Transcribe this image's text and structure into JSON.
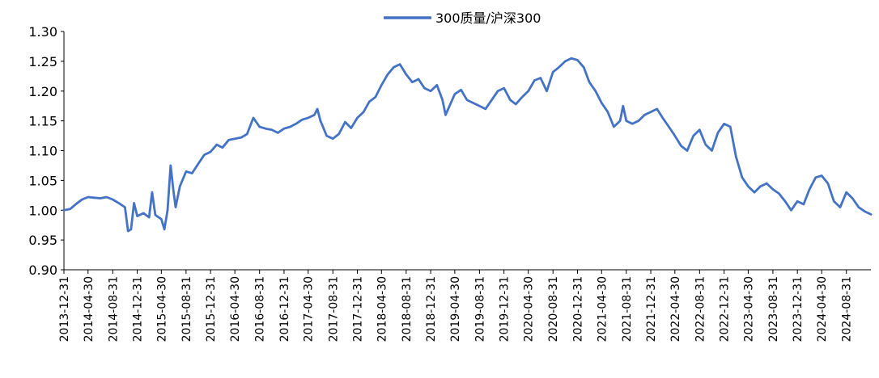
{
  "chart_data": {
    "type": "line",
    "title": "",
    "xlabel": "",
    "ylabel": "",
    "ylim": [
      0.9,
      1.3
    ],
    "yticks": [
      "0.90",
      "0.95",
      "1.00",
      "1.05",
      "1.10",
      "1.15",
      "1.20",
      "1.25",
      "1.30"
    ],
    "xlim": [
      "2013-12-31",
      "2024-12-31"
    ],
    "xtick_labels": [
      "2013-12-31",
      "2014-04-30",
      "2014-08-31",
      "2014-12-31",
      "2015-04-30",
      "2015-08-31",
      "2015-12-31",
      "2016-04-30",
      "2016-08-31",
      "2016-12-31",
      "2017-04-30",
      "2017-08-31",
      "2017-12-31",
      "2018-04-30",
      "2018-08-31",
      "2018-12-31",
      "2019-04-30",
      "2019-08-31",
      "2019-12-31",
      "2020-04-30",
      "2020-08-31",
      "2020-12-31",
      "2021-04-30",
      "2021-08-31",
      "2021-12-31",
      "2022-04-30",
      "2022-08-31",
      "2022-12-31",
      "2023-04-30",
      "2023-08-31",
      "2023-12-31",
      "2024-04-30",
      "2024-08-31"
    ],
    "grid": false,
    "legend": "top-center",
    "series": [
      {
        "name": "300质量/沪深300",
        "color": "#4472c4",
        "points": [
          [
            "2013-12-31",
            1.0
          ],
          [
            "2014-01-31",
            1.002
          ],
          [
            "2014-02-28",
            1.01
          ],
          [
            "2014-03-31",
            1.018
          ],
          [
            "2014-04-30",
            1.022
          ],
          [
            "2014-05-31",
            1.021
          ],
          [
            "2014-06-30",
            1.02
          ],
          [
            "2014-07-31",
            1.022
          ],
          [
            "2014-08-31",
            1.018
          ],
          [
            "2014-09-30",
            1.012
          ],
          [
            "2014-10-31",
            1.005
          ],
          [
            "2014-11-15",
            0.965
          ],
          [
            "2014-11-30",
            0.968
          ],
          [
            "2014-12-15",
            1.012
          ],
          [
            "2014-12-31",
            0.99
          ],
          [
            "2015-01-31",
            0.995
          ],
          [
            "2015-02-28",
            0.988
          ],
          [
            "2015-03-15",
            1.03
          ],
          [
            "2015-03-31",
            0.992
          ],
          [
            "2015-04-30",
            0.985
          ],
          [
            "2015-05-15",
            0.968
          ],
          [
            "2015-05-31",
            1.0
          ],
          [
            "2015-06-15",
            1.075
          ],
          [
            "2015-06-30",
            1.03
          ],
          [
            "2015-07-10",
            1.005
          ],
          [
            "2015-07-31",
            1.04
          ],
          [
            "2015-08-31",
            1.065
          ],
          [
            "2015-09-30",
            1.062
          ],
          [
            "2015-10-31",
            1.078
          ],
          [
            "2015-11-30",
            1.093
          ],
          [
            "2015-12-31",
            1.098
          ],
          [
            "2016-01-31",
            1.11
          ],
          [
            "2016-02-28",
            1.105
          ],
          [
            "2016-03-31",
            1.118
          ],
          [
            "2016-04-30",
            1.12
          ],
          [
            "2016-05-31",
            1.122
          ],
          [
            "2016-06-30",
            1.128
          ],
          [
            "2016-07-31",
            1.155
          ],
          [
            "2016-08-31",
            1.14
          ],
          [
            "2016-09-30",
            1.137
          ],
          [
            "2016-10-31",
            1.135
          ],
          [
            "2016-11-30",
            1.13
          ],
          [
            "2016-12-31",
            1.137
          ],
          [
            "2017-01-31",
            1.14
          ],
          [
            "2017-02-28",
            1.145
          ],
          [
            "2017-03-31",
            1.152
          ],
          [
            "2017-04-30",
            1.155
          ],
          [
            "2017-05-31",
            1.16
          ],
          [
            "2017-06-15",
            1.17
          ],
          [
            "2017-06-30",
            1.15
          ],
          [
            "2017-07-31",
            1.125
          ],
          [
            "2017-08-31",
            1.12
          ],
          [
            "2017-09-30",
            1.128
          ],
          [
            "2017-10-31",
            1.148
          ],
          [
            "2017-11-30",
            1.138
          ],
          [
            "2017-12-31",
            1.155
          ],
          [
            "2018-01-31",
            1.165
          ],
          [
            "2018-02-28",
            1.182
          ],
          [
            "2018-03-31",
            1.19
          ],
          [
            "2018-04-30",
            1.21
          ],
          [
            "2018-05-31",
            1.228
          ],
          [
            "2018-06-30",
            1.24
          ],
          [
            "2018-07-31",
            1.245
          ],
          [
            "2018-08-31",
            1.228
          ],
          [
            "2018-09-30",
            1.215
          ],
          [
            "2018-10-31",
            1.22
          ],
          [
            "2018-11-30",
            1.205
          ],
          [
            "2018-12-31",
            1.2
          ],
          [
            "2019-01-31",
            1.21
          ],
          [
            "2019-02-28",
            1.185
          ],
          [
            "2019-03-15",
            1.16
          ],
          [
            "2019-03-31",
            1.172
          ],
          [
            "2019-04-30",
            1.195
          ],
          [
            "2019-05-31",
            1.202
          ],
          [
            "2019-06-30",
            1.185
          ],
          [
            "2019-07-31",
            1.18
          ],
          [
            "2019-08-31",
            1.175
          ],
          [
            "2019-09-30",
            1.17
          ],
          [
            "2019-10-31",
            1.185
          ],
          [
            "2019-11-30",
            1.2
          ],
          [
            "2019-12-31",
            1.205
          ],
          [
            "2020-01-31",
            1.185
          ],
          [
            "2020-02-28",
            1.178
          ],
          [
            "2020-03-31",
            1.19
          ],
          [
            "2020-04-30",
            1.2
          ],
          [
            "2020-05-31",
            1.218
          ],
          [
            "2020-06-30",
            1.222
          ],
          [
            "2020-07-31",
            1.2
          ],
          [
            "2020-08-31",
            1.232
          ],
          [
            "2020-09-30",
            1.24
          ],
          [
            "2020-10-31",
            1.25
          ],
          [
            "2020-11-30",
            1.255
          ],
          [
            "2020-12-31",
            1.252
          ],
          [
            "2021-01-31",
            1.24
          ],
          [
            "2021-02-28",
            1.215
          ],
          [
            "2021-03-31",
            1.2
          ],
          [
            "2021-04-30",
            1.18
          ],
          [
            "2021-05-31",
            1.165
          ],
          [
            "2021-06-30",
            1.14
          ],
          [
            "2021-07-31",
            1.15
          ],
          [
            "2021-08-15",
            1.175
          ],
          [
            "2021-08-31",
            1.15
          ],
          [
            "2021-09-30",
            1.145
          ],
          [
            "2021-10-31",
            1.15
          ],
          [
            "2021-11-30",
            1.16
          ],
          [
            "2021-12-31",
            1.165
          ],
          [
            "2022-01-31",
            1.17
          ],
          [
            "2022-02-28",
            1.155
          ],
          [
            "2022-03-31",
            1.14
          ],
          [
            "2022-04-30",
            1.125
          ],
          [
            "2022-05-31",
            1.108
          ],
          [
            "2022-06-30",
            1.1
          ],
          [
            "2022-07-31",
            1.125
          ],
          [
            "2022-08-31",
            1.135
          ],
          [
            "2022-09-30",
            1.11
          ],
          [
            "2022-10-31",
            1.1
          ],
          [
            "2022-11-30",
            1.13
          ],
          [
            "2022-12-31",
            1.145
          ],
          [
            "2023-01-31",
            1.14
          ],
          [
            "2023-02-28",
            1.09
          ],
          [
            "2023-03-31",
            1.055
          ],
          [
            "2023-04-30",
            1.04
          ],
          [
            "2023-05-31",
            1.03
          ],
          [
            "2023-06-30",
            1.04
          ],
          [
            "2023-07-31",
            1.045
          ],
          [
            "2023-08-31",
            1.035
          ],
          [
            "2023-09-30",
            1.028
          ],
          [
            "2023-10-31",
            1.015
          ],
          [
            "2023-11-30",
            1.0
          ],
          [
            "2023-12-31",
            1.015
          ],
          [
            "2024-01-31",
            1.01
          ],
          [
            "2024-02-29",
            1.035
          ],
          [
            "2024-03-31",
            1.055
          ],
          [
            "2024-04-30",
            1.058
          ],
          [
            "2024-05-31",
            1.045
          ],
          [
            "2024-06-30",
            1.015
          ],
          [
            "2024-07-31",
            1.005
          ],
          [
            "2024-08-31",
            1.03
          ],
          [
            "2024-09-30",
            1.02
          ],
          [
            "2024-10-31",
            1.005
          ],
          [
            "2024-11-30",
            0.998
          ],
          [
            "2024-12-31",
            0.993
          ]
        ]
      }
    ]
  }
}
